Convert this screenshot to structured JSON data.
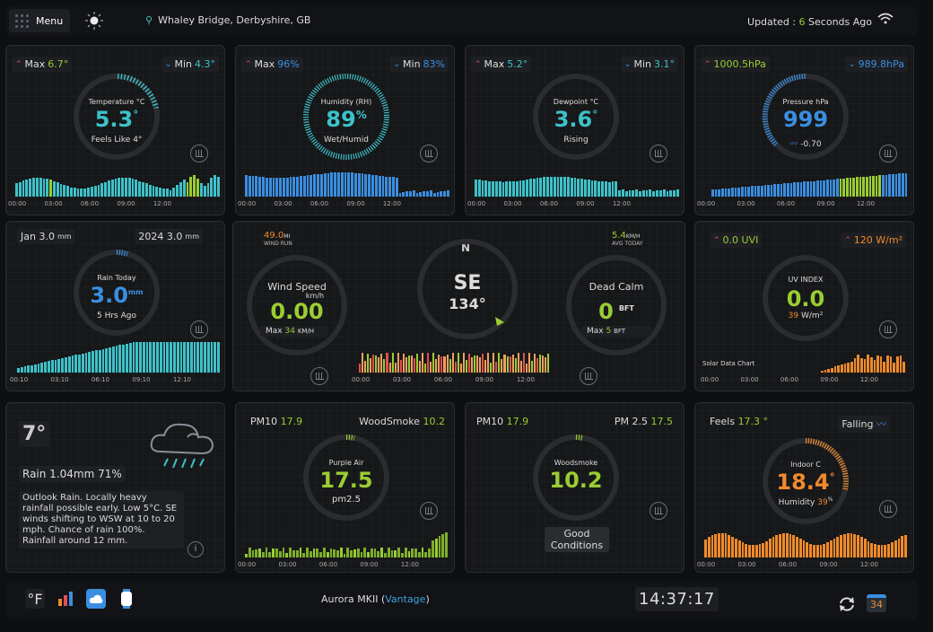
{
  "header": {
    "menu_label": "Menu",
    "location": "Whaley Bridge, Derbyshire, GB",
    "updated_prefix": "Updated :",
    "updated_value": "6",
    "updated_suffix": "Seconds Ago"
  },
  "temperature": {
    "max_label": "Max",
    "max": "6.7°",
    "min_label": "Min",
    "min": "4.3°",
    "title": "Temperature °C",
    "value": "5.3",
    "unit": "°",
    "sub": "Feels Like 4°"
  },
  "humidity": {
    "max_label": "Max",
    "max": "96%",
    "min_label": "Min",
    "min": "83%",
    "title": "Humidity (RH)",
    "value": "89",
    "unit": "%",
    "sub": "Wet/Humid"
  },
  "dewpoint": {
    "max_label": "Max",
    "max": "5.2°",
    "min_label": "Min",
    "min": "3.1°",
    "title": "Dewpoint °C",
    "value": "3.6",
    "unit": "°",
    "sub": "Rising"
  },
  "pressure": {
    "max": "1000.5hPa",
    "min": "989.8hPa",
    "title": "Pressure hPa",
    "value": "999",
    "sub": "-0.70"
  },
  "rain": {
    "month": "Jan 3.0",
    "month_unit": "mm",
    "year": "2024 3.0",
    "year_unit": "mm",
    "title": "Rain Today",
    "value": "3.0",
    "unit": "mm",
    "sub": "5 Hrs Ago"
  },
  "wind": {
    "run_value": "49.0",
    "run_unit": "MI",
    "run_label": "WIND RUN",
    "avg_value": "5.4",
    "avg_unit": "KM/H",
    "avg_label": "AVG TODAY",
    "speed_title": "Wind Speed",
    "speed_unit": "km/h",
    "speed": "0.00",
    "speed_max_label": "Max",
    "speed_max": "34",
    "speed_max_unit": "KM/H",
    "compass_n": "N",
    "direction": "SE",
    "degrees": "134°",
    "calm_title": "Dead Calm",
    "calm_value": "0",
    "calm_unit": "BFT",
    "calm_max_label": "Max",
    "calm_max": "5",
    "calm_max_unit": "BFT"
  },
  "uv": {
    "uvi": "0.0 UVI",
    "solar": "120 W/m²",
    "title": "UV INDEX",
    "value": "0.0",
    "sub_value": "39",
    "sub_unit": "W/m²",
    "chart_label": "Solar Data Chart"
  },
  "forecast": {
    "temp": "7°",
    "rain": "Rain 1.04mm 71%",
    "text": "Outlook Rain. Locally heavy rainfall possible early. Low 5°C. SE winds shifting to WSW at 10 to 20 mph. Chance of rain 100%. Rainfall around 12 mm."
  },
  "purple_air": {
    "pm10_label": "PM10",
    "pm10": "17.9",
    "ws_label": "WoodSmoke",
    "ws": "10.2",
    "title": "Purple Air",
    "value": "17.5",
    "sub": "pm2.5"
  },
  "woodsmoke": {
    "pm10_label": "PM10",
    "pm10": "17.9",
    "pm25_label": "PM 2.5",
    "pm25": "17.5",
    "title": "Woodsmoke",
    "value": "10.2",
    "sub": "Good Conditions"
  },
  "indoor": {
    "feels_label": "Feels",
    "feels": "17.3 °",
    "trend": "Falling",
    "title": "Indoor C",
    "value": "18.4",
    "unit": "°",
    "humidity_label": "Humidity",
    "humidity": "39",
    "humidity_unit": "%"
  },
  "ticks": {
    "a": [
      "00:00",
      "03:00",
      "06:00",
      "09:00",
      "12:00"
    ],
    "b": [
      "00:10",
      "03:10",
      "06:10",
      "09:10",
      "12:10"
    ]
  },
  "footer": {
    "unit_toggle": "°F",
    "model": "Aurora MKII (",
    "model_link": "Vantage",
    "model_end": ")",
    "time": "14:37:17",
    "date_badge": "34"
  },
  "colors": {
    "teal": "#3ec1c9",
    "blue": "#3a8ee0",
    "green": "#9acd32",
    "orange": "#f08a2a",
    "bg": "#0e0f11"
  }
}
